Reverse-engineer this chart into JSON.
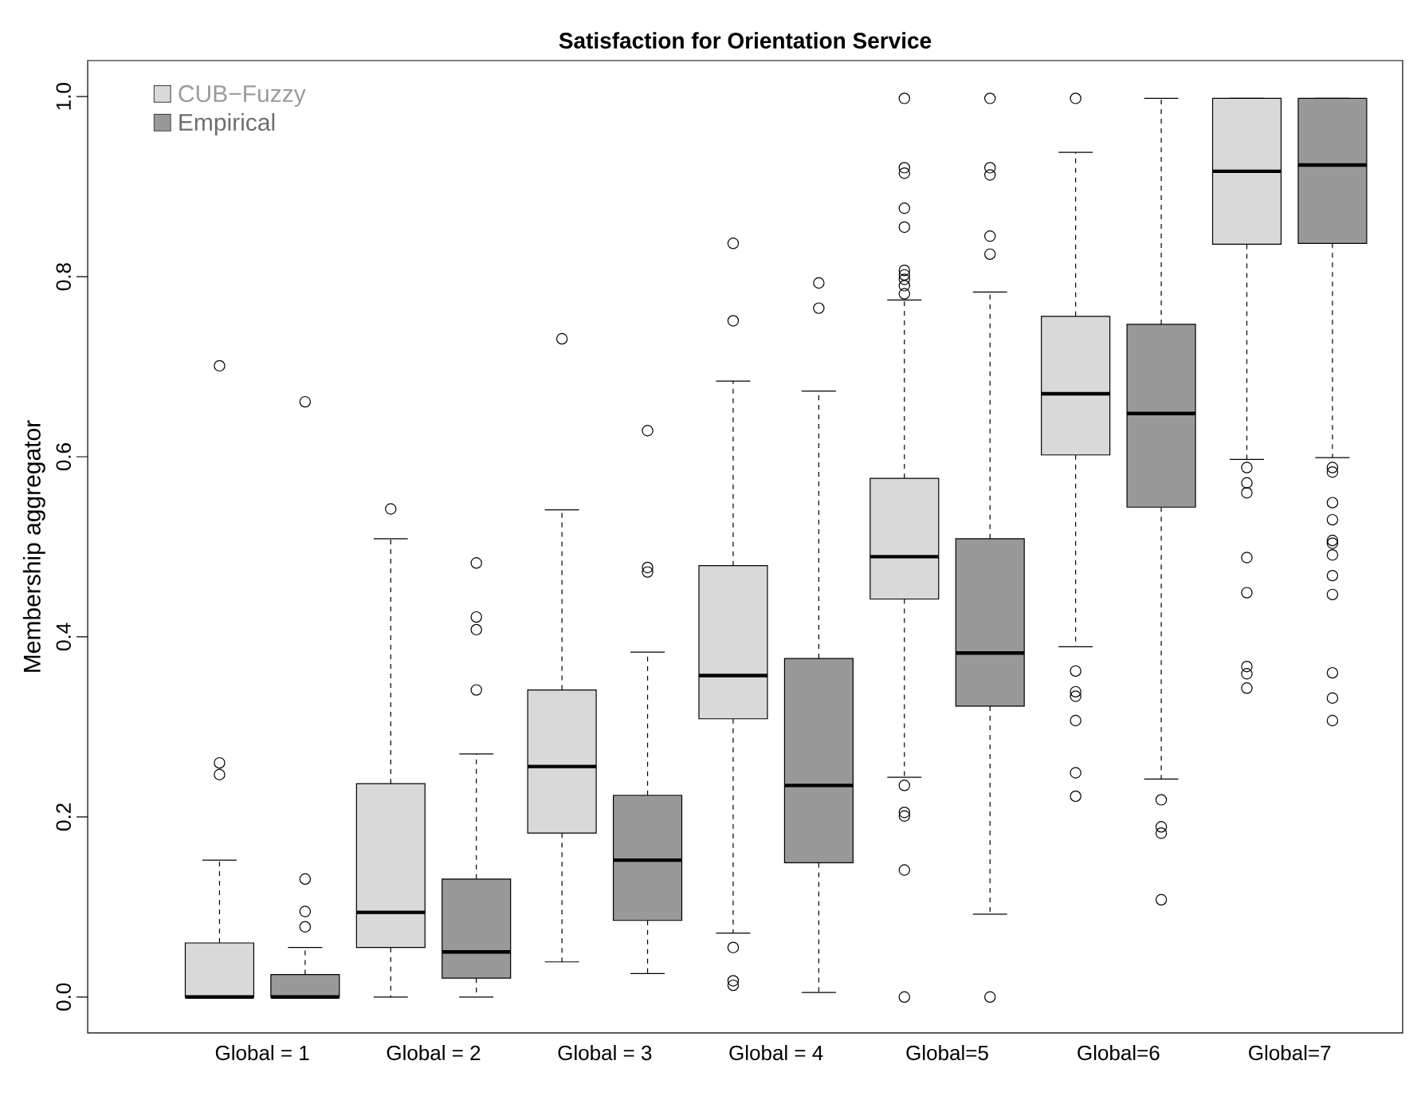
{
  "chart_data": {
    "type": "box",
    "title": "Satisfaction for Orientation Service",
    "ylabel": "Membership aggregator",
    "categories": [
      "Global = 1",
      "Global = 2",
      "Global = 3",
      "Global = 4",
      "Global=5",
      "Global=6",
      "Global=7"
    ],
    "ylim": [
      -0.04,
      1.04
    ],
    "yticks": [
      {
        "value": 0,
        "label": "0.0"
      },
      {
        "value": 0.2,
        "label": "0.2"
      },
      {
        "value": 0.4,
        "label": "0.4"
      },
      {
        "value": 0.6,
        "label": "0.6"
      },
      {
        "value": 0.8,
        "label": "0.8"
      },
      {
        "value": 1.0,
        "label": "1.0"
      }
    ],
    "legend": "top left",
    "marker": "circle",
    "series": [
      {
        "name": "CUB−Fuzzy",
        "color": "#d9d9d9",
        "boxes": [
          {
            "low": 0,
            "q1": 0,
            "median": 0,
            "q3": 0.06,
            "high": 0.152,
            "outliers": [
              0.26,
              0.247,
              0.701
            ]
          },
          {
            "low": 0,
            "q1": 0.055,
            "median": 0.094,
            "q3": 0.237,
            "high": 0.509,
            "outliers": [
              0.542
            ]
          },
          {
            "low": 0.039,
            "q1": 0.182,
            "median": 0.256,
            "q3": 0.341,
            "high": 0.541,
            "outliers": [
              0.731
            ]
          },
          {
            "low": 0.071,
            "q1": 0.309,
            "median": 0.357,
            "q3": 0.479,
            "high": 0.684,
            "outliers": [
              0.837,
              0.751,
              0.055,
              0.018,
              0.013
            ]
          },
          {
            "low": 0.244,
            "q1": 0.442,
            "median": 0.489,
            "q3": 0.576,
            "high": 0.774,
            "outliers": [
              0.998,
              0.921,
              0.915,
              0.876,
              0.855,
              0.807,
              0.802,
              0.797,
              0.79,
              0.781,
              0.235,
              0.205,
              0.201,
              0.141,
              0.0
            ]
          },
          {
            "low": 0.389,
            "q1": 0.602,
            "median": 0.67,
            "q3": 0.756,
            "high": 0.938,
            "outliers": [
              0.998,
              0.362,
              0.339,
              0.334,
              0.307,
              0.249,
              0.223
            ]
          },
          {
            "low": 0.597,
            "q1": 0.836,
            "median": 0.917,
            "q3": 0.998,
            "high": 0.998,
            "outliers": [
              0.588,
              0.571,
              0.56,
              0.488,
              0.449,
              0.367,
              0.359,
              0.343
            ]
          }
        ]
      },
      {
        "name": "Empirical",
        "color": "#999999",
        "boxes": [
          {
            "low": 0,
            "q1": 0,
            "median": 0,
            "q3": 0.025,
            "high": 0.055,
            "outliers": [
              0.131,
              0.095,
              0.078,
              0.661
            ]
          },
          {
            "low": 0,
            "q1": 0.021,
            "median": 0.05,
            "q3": 0.131,
            "high": 0.27,
            "outliers": [
              0.482,
              0.422,
              0.408,
              0.341
            ]
          },
          {
            "low": 0.026,
            "q1": 0.085,
            "median": 0.152,
            "q3": 0.224,
            "high": 0.383,
            "outliers": [
              0.629,
              0.477,
              0.472
            ]
          },
          {
            "low": 0.005,
            "q1": 0.149,
            "median": 0.235,
            "q3": 0.376,
            "high": 0.673,
            "outliers": [
              0.793,
              0.765
            ]
          },
          {
            "low": 0.092,
            "q1": 0.323,
            "median": 0.382,
            "q3": 0.509,
            "high": 0.783,
            "outliers": [
              0.998,
              0.921,
              0.913,
              0.845,
              0.825,
              0.0
            ]
          },
          {
            "low": 0.242,
            "q1": 0.544,
            "median": 0.648,
            "q3": 0.747,
            "high": 0.998,
            "outliers": [
              0.219,
              0.189,
              0.182,
              0.108
            ]
          },
          {
            "low": 0.599,
            "q1": 0.837,
            "median": 0.924,
            "q3": 0.998,
            "high": 0.998,
            "outliers": [
              0.588,
              0.583,
              0.549,
              0.53,
              0.507,
              0.504,
              0.491,
              0.468,
              0.447,
              0.36,
              0.332,
              0.307
            ]
          }
        ]
      }
    ]
  }
}
